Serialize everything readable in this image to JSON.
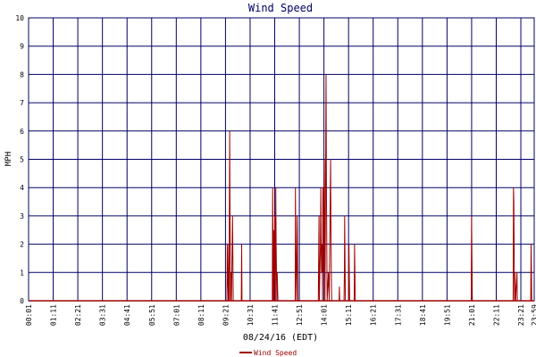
{
  "chart_data": {
    "type": "line",
    "title": "Wind Speed",
    "xlabel": "08/24/16 (EDT)",
    "ylabel": "MPH",
    "ylim": [
      0,
      10
    ],
    "yticks": [
      0,
      1,
      2,
      3,
      4,
      5,
      6,
      7,
      8,
      9,
      10
    ],
    "x_domain": [
      "00:01",
      "23:59"
    ],
    "xticks": [
      "00:01",
      "01:11",
      "02:21",
      "03:31",
      "04:41",
      "05:51",
      "07:01",
      "08:11",
      "09:21",
      "10:31",
      "11:41",
      "12:51",
      "14:01",
      "15:11",
      "16:21",
      "17:31",
      "18:41",
      "19:51",
      "21:01",
      "22:11",
      "23:21",
      "23:59"
    ],
    "grid": true,
    "legend": {
      "position": "bottom-center",
      "entries": [
        "Wind Speed"
      ]
    },
    "colors": {
      "series": "#a00000",
      "grid": "#000066",
      "title": "#000066",
      "background": "#ffffff"
    },
    "series": [
      {
        "name": "Wind Speed",
        "points": [
          [
            "00:01",
            0
          ],
          [
            "09:25",
            0
          ],
          [
            "09:26",
            2
          ],
          [
            "09:27",
            1
          ],
          [
            "09:29",
            0
          ],
          [
            "09:30",
            2
          ],
          [
            "09:31",
            0
          ],
          [
            "09:33",
            6
          ],
          [
            "09:34",
            3
          ],
          [
            "09:35",
            0
          ],
          [
            "09:37",
            1
          ],
          [
            "09:38",
            0
          ],
          [
            "09:41",
            3
          ],
          [
            "09:42",
            1.5
          ],
          [
            "09:43",
            0
          ],
          [
            "10:06",
            0
          ],
          [
            "10:07",
            2
          ],
          [
            "10:08",
            0
          ],
          [
            "11:34",
            0
          ],
          [
            "11:35",
            4
          ],
          [
            "11:36",
            2
          ],
          [
            "11:37",
            0
          ],
          [
            "11:38",
            2.5
          ],
          [
            "11:39",
            0
          ],
          [
            "11:40",
            1
          ],
          [
            "11:41",
            3
          ],
          [
            "11:42",
            1.5
          ],
          [
            "11:43",
            0
          ],
          [
            "11:44",
            4
          ],
          [
            "11:45",
            2
          ],
          [
            "11:46",
            1
          ],
          [
            "11:47",
            0
          ],
          [
            "11:48",
            1
          ],
          [
            "11:49",
            0.5
          ],
          [
            "11:50",
            0
          ],
          [
            "12:39",
            0
          ],
          [
            "12:40",
            4
          ],
          [
            "12:41",
            2
          ],
          [
            "12:42",
            1
          ],
          [
            "12:43",
            0
          ],
          [
            "12:45",
            3
          ],
          [
            "12:46",
            1.5
          ],
          [
            "12:47",
            0
          ],
          [
            "13:45",
            0
          ],
          [
            "13:46",
            1.5
          ],
          [
            "13:47",
            3
          ],
          [
            "13:48",
            0
          ],
          [
            "13:51",
            2
          ],
          [
            "13:52",
            4
          ],
          [
            "13:53",
            2
          ],
          [
            "13:54",
            1
          ],
          [
            "13:55",
            2
          ],
          [
            "13:56",
            1.5
          ],
          [
            "13:57",
            0
          ],
          [
            "13:58",
            4
          ],
          [
            "13:59",
            2
          ],
          [
            "14:00",
            1
          ],
          [
            "14:02",
            5
          ],
          [
            "14:03",
            2.5
          ],
          [
            "14:04",
            0
          ],
          [
            "14:07",
            8
          ],
          [
            "14:08",
            4
          ],
          [
            "14:09",
            2
          ],
          [
            "14:10",
            0
          ],
          [
            "14:14",
            1
          ],
          [
            "14:15",
            0.5
          ],
          [
            "14:16",
            0
          ],
          [
            "14:20",
            5
          ],
          [
            "14:21",
            2.5
          ],
          [
            "14:22",
            1
          ],
          [
            "14:23",
            0
          ],
          [
            "14:44",
            0
          ],
          [
            "14:45",
            0.5
          ],
          [
            "14:46",
            0
          ],
          [
            "14:58",
            0
          ],
          [
            "14:59",
            1
          ],
          [
            "15:00",
            3
          ],
          [
            "15:01",
            1.5
          ],
          [
            "15:02",
            0
          ],
          [
            "15:11",
            0
          ],
          [
            "15:12",
            2
          ],
          [
            "15:13",
            1
          ],
          [
            "15:14",
            0
          ],
          [
            "15:27",
            0
          ],
          [
            "15:28",
            2
          ],
          [
            "15:29",
            1
          ],
          [
            "15:30",
            0
          ],
          [
            "21:00",
            0
          ],
          [
            "21:01",
            3
          ],
          [
            "21:02",
            1.5
          ],
          [
            "21:03",
            0
          ],
          [
            "22:59",
            0
          ],
          [
            "23:00",
            4
          ],
          [
            "23:01",
            3.5
          ],
          [
            "23:02",
            1.5
          ],
          [
            "23:03",
            0
          ],
          [
            "23:04",
            1
          ],
          [
            "23:05",
            0.5
          ],
          [
            "23:06",
            0
          ],
          [
            "23:10",
            1
          ],
          [
            "23:11",
            0
          ],
          [
            "23:49",
            0
          ],
          [
            "23:50",
            2
          ],
          [
            "23:51",
            1
          ],
          [
            "23:52",
            0
          ],
          [
            "23:59",
            0
          ]
        ]
      }
    ]
  }
}
